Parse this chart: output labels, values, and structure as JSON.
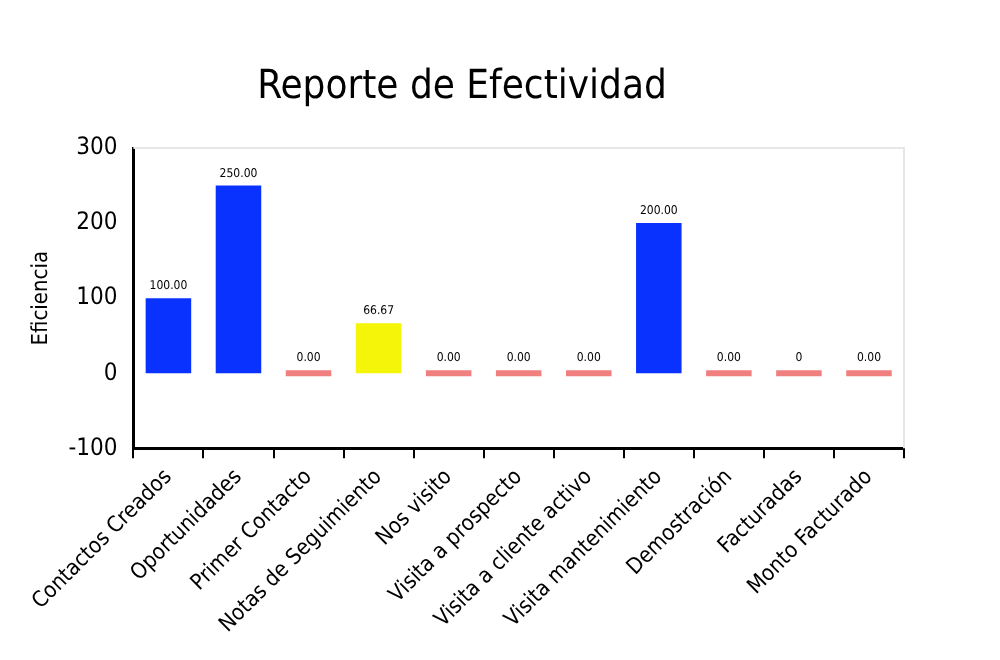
{
  "chart_data": {
    "type": "bar",
    "title": "Reporte de Efectividad",
    "ylabel": "Eficiencia",
    "categories": [
      "Contactos Creados",
      "Oportunidades",
      "Primer Contacto",
      "Notas de Seguimiento",
      "Nos visito",
      "Visita a prospecto",
      "Visita a cliente activo",
      "Visita mantenimiento",
      "Demostración",
      "Facturadas",
      "Monto Facturado"
    ],
    "values": [
      100,
      250,
      0,
      66.67,
      0,
      0,
      0,
      200,
      0,
      0,
      0
    ],
    "colors": [
      "#0a32ff",
      "#0a32ff",
      "#f08080",
      "#f5f50a",
      "#f08080",
      "#f08080",
      "#f08080",
      "#0a32ff",
      "#f08080",
      "#f08080",
      "#f08080"
    ],
    "value_labels": [
      "100.00",
      "250.00",
      "0.00",
      "66.67",
      "0.00",
      "0.00",
      "0.00",
      "200.00",
      "0.00",
      "0",
      "0.00"
    ],
    "ylim": [
      -100,
      300
    ],
    "yticks": [
      -100,
      0,
      100,
      200,
      300
    ],
    "grid": false,
    "legend": false
  }
}
